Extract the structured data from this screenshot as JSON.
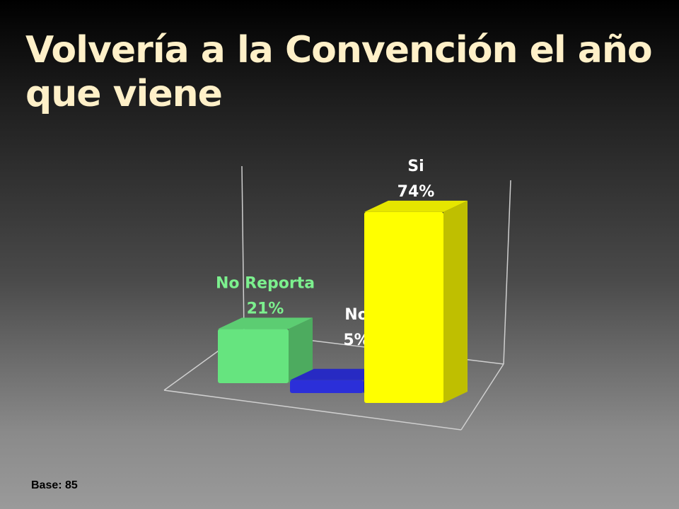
{
  "chart_data": {
    "type": "bar3d",
    "title": "Volvería a la Convención el año que viene",
    "categories": [
      "No Reporta",
      "No",
      "Si"
    ],
    "values": [
      21,
      5,
      74
    ],
    "value_labels": [
      "21%",
      "5%",
      "74%"
    ],
    "colors": [
      "#66e47f",
      "#2b2fd9",
      "#ffff00"
    ],
    "note": "Base: 85"
  }
}
